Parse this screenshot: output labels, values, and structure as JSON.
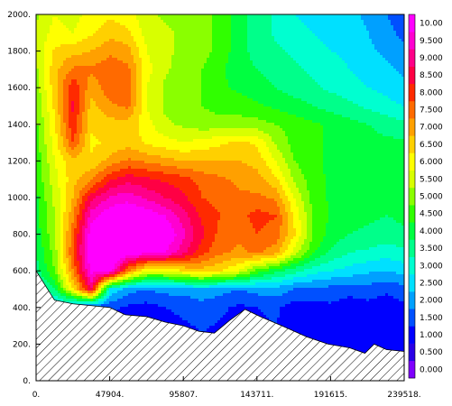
{
  "chart_data": {
    "type": "heatmap",
    "title": "",
    "xlabel": "",
    "ylabel": "",
    "xlim": [
      0,
      239518
    ],
    "ylim": [
      0,
      2000
    ],
    "x_tick_labels": [
      "0.",
      "47904.",
      "95807.",
      "143711.",
      "191615.",
      "239518."
    ],
    "x_tick_values": [
      0,
      47904,
      95807,
      143711,
      191615,
      239518
    ],
    "y_tick_labels": [
      "0.",
      "200.",
      "400.",
      "600.",
      "800.",
      "1000.",
      "1200.",
      "1400.",
      "1600.",
      "1800.",
      "2000."
    ],
    "y_tick_values": [
      0,
      200,
      400,
      600,
      800,
      1000,
      1200,
      1400,
      1600,
      1800,
      2000
    ],
    "colorbar": {
      "levels": [
        0.5,
        1.0,
        1.5,
        2.0,
        2.5,
        3.0,
        3.5,
        4.0,
        4.5,
        5.0,
        5.5,
        6.0,
        6.5,
        7.0,
        7.5,
        8.0,
        8.5,
        9.0,
        9.5,
        10.0
      ],
      "labels": [
        "0.000",
        "0.500",
        "1.000",
        "1.500",
        "2.000",
        "2.500",
        "3.000",
        "3.500",
        "4.000",
        "4.500",
        "5.000",
        "5.500",
        "6.000",
        "6.500",
        "7.000",
        "7.500",
        "8.000",
        "8.500",
        "9.000",
        "9.500",
        "10.00"
      ],
      "colors": [
        "#7f00ff",
        "#2a00e6",
        "#0000ff",
        "#0050ff",
        "#00a0ff",
        "#00e0ff",
        "#00ffd0",
        "#00ff8a",
        "#00ff40",
        "#30ff00",
        "#8aff00",
        "#d8ff00",
        "#ffff00",
        "#ffd000",
        "#ffa000",
        "#ff6a00",
        "#ff2a00",
        "#ff0044",
        "#ff0088",
        "#ff00d0",
        "#ff00ff"
      ]
    },
    "terrain_bottom": [
      [
        0,
        600
      ],
      [
        12000,
        440
      ],
      [
        24000,
        420
      ],
      [
        36000,
        410
      ],
      [
        48000,
        400
      ],
      [
        58000,
        360
      ],
      [
        72000,
        350
      ],
      [
        84000,
        320
      ],
      [
        96000,
        300
      ],
      [
        106000,
        270
      ],
      [
        116000,
        260
      ],
      [
        126000,
        330
      ],
      [
        136000,
        390
      ],
      [
        146000,
        350
      ],
      [
        160000,
        300
      ],
      [
        176000,
        240
      ],
      [
        190000,
        200
      ],
      [
        204000,
        180
      ],
      [
        214000,
        150
      ],
      [
        220000,
        200
      ],
      [
        228000,
        170
      ],
      [
        239518,
        160
      ]
    ],
    "field": {
      "x": [
        0,
        12000,
        24000,
        36000,
        48000,
        60000,
        72000,
        84000,
        96000,
        108000,
        120000,
        132000,
        144000,
        156000,
        168000,
        180000,
        192000,
        204000,
        216000,
        228000,
        239518
      ],
      "y": [
        0,
        200,
        400,
        500,
        600,
        700,
        800,
        900,
        1000,
        1100,
        1200,
        1300,
        1400,
        1500,
        1600,
        1700,
        1800,
        1900,
        2000
      ],
      "values": [
        [
          1.2,
          1.0,
          1.0,
          1.2,
          1.4,
          1.2,
          1.0,
          1.1,
          1.2,
          1.3,
          1.2,
          1.1,
          1.2,
          1.3,
          1.0,
          1.1,
          1.2,
          1.0,
          1.1,
          1.0,
          1.2
        ],
        [
          1.3,
          1.2,
          1.2,
          1.4,
          1.5,
          1.3,
          1.1,
          1.2,
          1.3,
          1.4,
          1.3,
          1.2,
          1.3,
          1.4,
          1.1,
          1.2,
          1.3,
          1.1,
          1.2,
          1.1,
          1.3
        ],
        [
          2.0,
          2.5,
          2.0,
          1.5,
          1.6,
          1.4,
          1.3,
          1.5,
          1.6,
          1.7,
          1.6,
          1.4,
          1.5,
          1.6,
          1.2,
          1.3,
          1.4,
          1.2,
          1.3,
          1.2,
          1.4
        ],
        [
          3.2,
          4.0,
          6.5,
          9.0,
          3.0,
          2.2,
          2.0,
          2.2,
          2.2,
          2.5,
          2.2,
          2.0,
          2.2,
          2.3,
          2.0,
          1.9,
          1.8,
          1.7,
          1.8,
          1.6,
          1.8
        ],
        [
          3.8,
          5.0,
          7.5,
          10.2,
          10.4,
          7.5,
          6.0,
          6.0,
          6.5,
          6.8,
          6.5,
          6.0,
          4.8,
          4.2,
          3.7,
          3.2,
          3.0,
          2.8,
          2.6,
          2.5,
          2.7
        ],
        [
          4.0,
          5.2,
          8.0,
          10.6,
          10.8,
          10.5,
          10.2,
          10.0,
          9.2,
          8.2,
          7.6,
          7.4,
          7.6,
          7.2,
          5.8,
          4.6,
          3.9,
          3.5,
          3.4,
          3.2,
          3.4
        ],
        [
          4.2,
          5.4,
          7.8,
          10.4,
          10.8,
          10.8,
          10.6,
          10.6,
          9.6,
          8.6,
          7.8,
          7.6,
          8.0,
          7.8,
          6.6,
          5.0,
          4.3,
          4.0,
          3.9,
          3.8,
          3.9
        ],
        [
          4.3,
          5.5,
          7.4,
          9.8,
          10.4,
          10.6,
          10.4,
          10.0,
          9.2,
          8.4,
          8.0,
          7.8,
          8.2,
          8.0,
          6.4,
          5.0,
          4.4,
          4.2,
          4.1,
          4.0,
          4.1
        ],
        [
          4.4,
          5.6,
          7.0,
          8.8,
          9.6,
          9.8,
          9.4,
          9.0,
          8.6,
          8.0,
          7.8,
          7.6,
          7.6,
          7.4,
          6.0,
          4.8,
          4.4,
          4.3,
          4.2,
          4.1,
          4.2
        ],
        [
          4.6,
          5.8,
          6.8,
          7.4,
          8.4,
          8.8,
          8.6,
          8.4,
          8.2,
          7.8,
          7.6,
          7.4,
          7.2,
          6.6,
          5.4,
          4.7,
          4.4,
          4.3,
          4.2,
          4.1,
          4.2
        ],
        [
          4.6,
          6.0,
          6.8,
          6.6,
          7.2,
          7.6,
          7.4,
          7.2,
          7.0,
          7.0,
          7.0,
          7.0,
          6.8,
          6.0,
          5.0,
          4.6,
          4.4,
          4.3,
          4.2,
          4.1,
          4.2
        ],
        [
          4.8,
          6.2,
          8.0,
          6.4,
          6.6,
          6.8,
          6.4,
          6.2,
          6.0,
          6.2,
          6.4,
          6.6,
          6.4,
          5.4,
          4.8,
          4.6,
          4.4,
          4.3,
          4.2,
          4.1,
          4.1
        ],
        [
          4.9,
          6.4,
          8.4,
          6.6,
          6.8,
          6.8,
          6.2,
          5.6,
          5.4,
          5.2,
          5.2,
          5.2,
          5.2,
          5.0,
          4.8,
          4.6,
          4.4,
          4.2,
          4.0,
          3.8,
          3.6
        ],
        [
          5.0,
          6.6,
          8.6,
          6.8,
          7.4,
          7.6,
          6.0,
          5.4,
          5.2,
          5.0,
          4.8,
          4.8,
          4.6,
          4.4,
          4.2,
          4.0,
          3.8,
          3.6,
          3.4,
          3.2,
          3.0
        ],
        [
          5.2,
          6.8,
          8.4,
          7.2,
          7.8,
          7.8,
          6.0,
          5.4,
          5.2,
          5.0,
          4.6,
          4.4,
          4.2,
          4.0,
          3.8,
          3.6,
          3.4,
          3.2,
          3.0,
          2.8,
          2.6
        ],
        [
          5.4,
          6.8,
          7.6,
          7.6,
          7.8,
          7.6,
          6.2,
          5.6,
          5.2,
          5.0,
          4.6,
          4.2,
          4.0,
          3.8,
          3.6,
          3.4,
          3.2,
          3.0,
          2.8,
          2.6,
          2.4
        ],
        [
          5.6,
          6.6,
          6.8,
          7.0,
          7.4,
          7.2,
          6.0,
          5.6,
          5.4,
          5.2,
          4.8,
          4.2,
          3.8,
          3.6,
          3.4,
          3.2,
          3.0,
          2.9,
          2.6,
          2.4,
          2.2
        ],
        [
          5.6,
          6.2,
          6.0,
          6.4,
          6.8,
          6.6,
          5.8,
          5.6,
          5.4,
          5.2,
          4.8,
          4.2,
          3.8,
          3.4,
          3.2,
          3.0,
          2.8,
          2.8,
          2.5,
          2.2,
          1.8
        ],
        [
          5.4,
          6.0,
          5.8,
          6.2,
          6.4,
          6.2,
          5.6,
          5.4,
          5.4,
          5.2,
          4.8,
          4.2,
          3.8,
          3.4,
          3.0,
          2.8,
          2.6,
          2.6,
          2.4,
          2.0,
          1.6
        ]
      ]
    }
  }
}
